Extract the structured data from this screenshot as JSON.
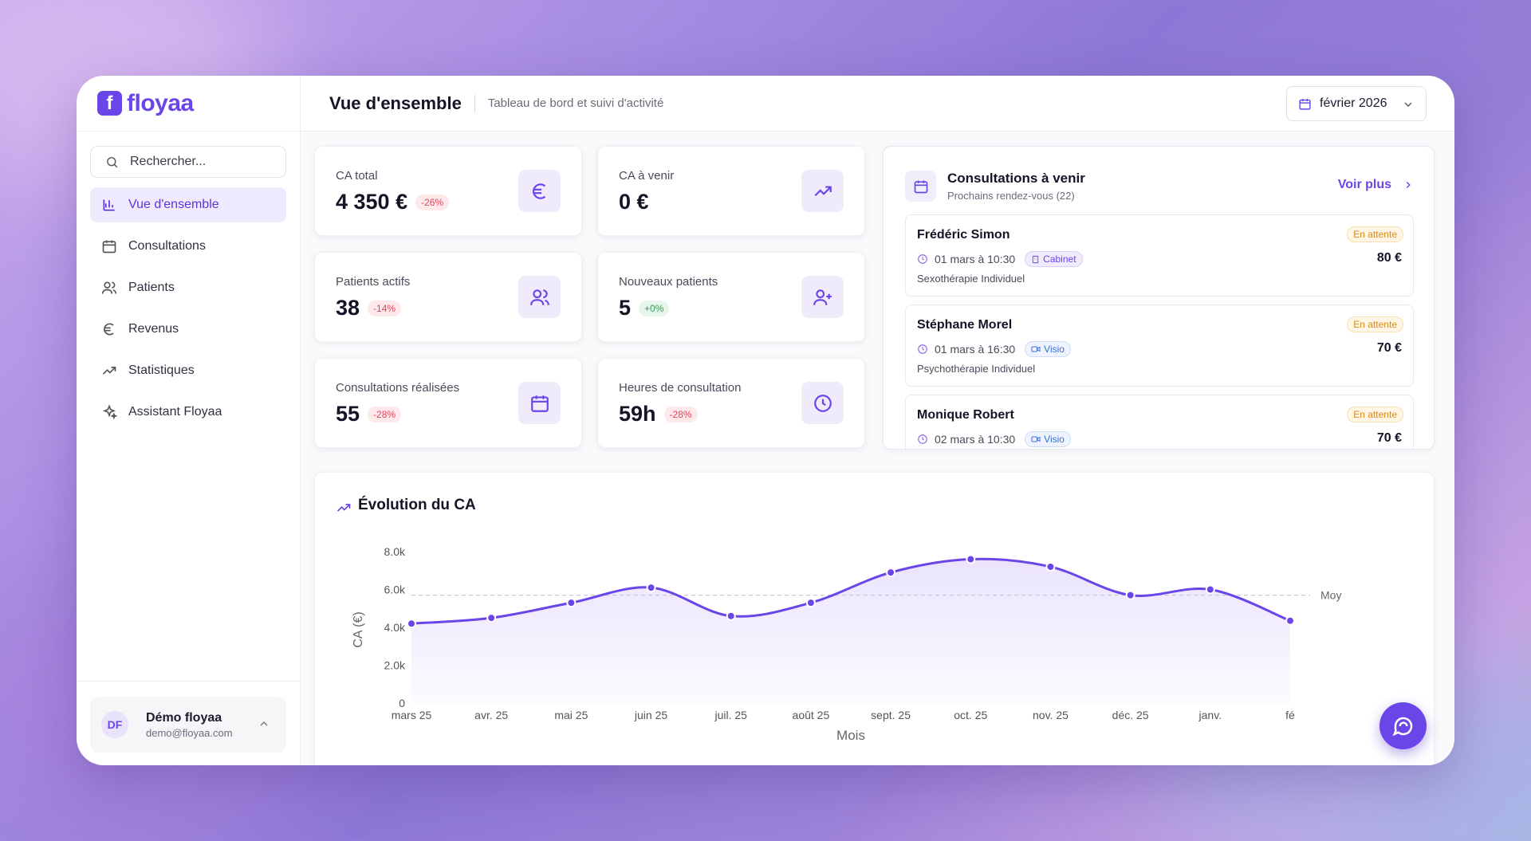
{
  "brand": {
    "name": "floyaa",
    "mark": "f"
  },
  "sidebar": {
    "search_placeholder": "Rechercher...",
    "items": [
      {
        "label": "Vue d'ensemble",
        "icon": "bar-chart-icon",
        "active": true
      },
      {
        "label": "Consultations",
        "icon": "calendar-icon"
      },
      {
        "label": "Patients",
        "icon": "users-icon"
      },
      {
        "label": "Revenus",
        "icon": "euro-icon"
      },
      {
        "label": "Statistiques",
        "icon": "trending-up-icon"
      },
      {
        "label": "Assistant Floyaa",
        "icon": "sparkles-icon"
      }
    ],
    "user": {
      "initials": "DF",
      "name": "Démo floyaa",
      "email": "demo@floyaa.com"
    }
  },
  "header": {
    "title": "Vue d'ensemble",
    "subtitle": "Tableau de bord et suivi d'activité",
    "date_selector": "février 2026"
  },
  "kpis": [
    {
      "label": "CA total",
      "value": "4 350 €",
      "badge": "-26%",
      "badge_type": "neg",
      "icon": "euro-icon"
    },
    {
      "label": "CA à venir",
      "value": "0 €",
      "badge": "",
      "badge_type": "",
      "icon": "trending-up-icon"
    },
    {
      "label": "Patients actifs",
      "value": "38",
      "badge": "-14%",
      "badge_type": "neg",
      "icon": "users-icon"
    },
    {
      "label": "Nouveaux patients",
      "value": "5",
      "badge": "+0%",
      "badge_type": "pos",
      "icon": "user-plus-icon"
    },
    {
      "label": "Consultations réalisées",
      "value": "55",
      "badge": "-28%",
      "badge_type": "neg",
      "icon": "calendar-icon"
    },
    {
      "label": "Heures de consultation",
      "value": "59h",
      "badge": "-28%",
      "badge_type": "neg",
      "icon": "clock-icon"
    }
  ],
  "consultations": {
    "title": "Consultations à venir",
    "subtitle": "Prochains rendez-vous (22)",
    "see_more": "Voir plus",
    "items": [
      {
        "name": "Frédéric Simon",
        "time": "01 mars à 10:30",
        "tag": "Cabinet",
        "tag_type": "cab",
        "type": "Sexothérapie Individuel",
        "status": "En attente",
        "price": "80 €"
      },
      {
        "name": "Stéphane Morel",
        "time": "01 mars à 16:30",
        "tag": "Visio",
        "tag_type": "vis",
        "type": "Psychothérapie Individuel",
        "status": "En attente",
        "price": "70 €"
      },
      {
        "name": "Monique Robert",
        "time": "02 mars à 10:30",
        "tag": "Visio",
        "tag_type": "vis",
        "type": "",
        "status": "En attente",
        "price": "70 €"
      }
    ]
  },
  "chart_title": "Évolution du CA",
  "chart_data": {
    "type": "area",
    "title": "Évolution du CA",
    "xlabel": "Mois",
    "ylabel": "CA (€)",
    "categories": [
      "mars 25",
      "avr. 25",
      "mai 25",
      "juin 25",
      "juil. 25",
      "août 25",
      "sept. 25",
      "oct. 25",
      "nov. 25",
      "déc. 25",
      "janv.",
      "fé"
    ],
    "values": [
      4200,
      4500,
      5300,
      6100,
      4600,
      5300,
      6900,
      7600,
      7200,
      5700,
      6000,
      4350
    ],
    "yticks": [
      "0",
      "2.0k",
      "4.0k",
      "6.0k",
      "8.0k"
    ],
    "ylim": [
      0,
      8000
    ],
    "average_line": {
      "value": 5700,
      "label": "Moy"
    },
    "colors": {
      "line": "#6a45e8",
      "fill": "#e9e2fc"
    }
  }
}
